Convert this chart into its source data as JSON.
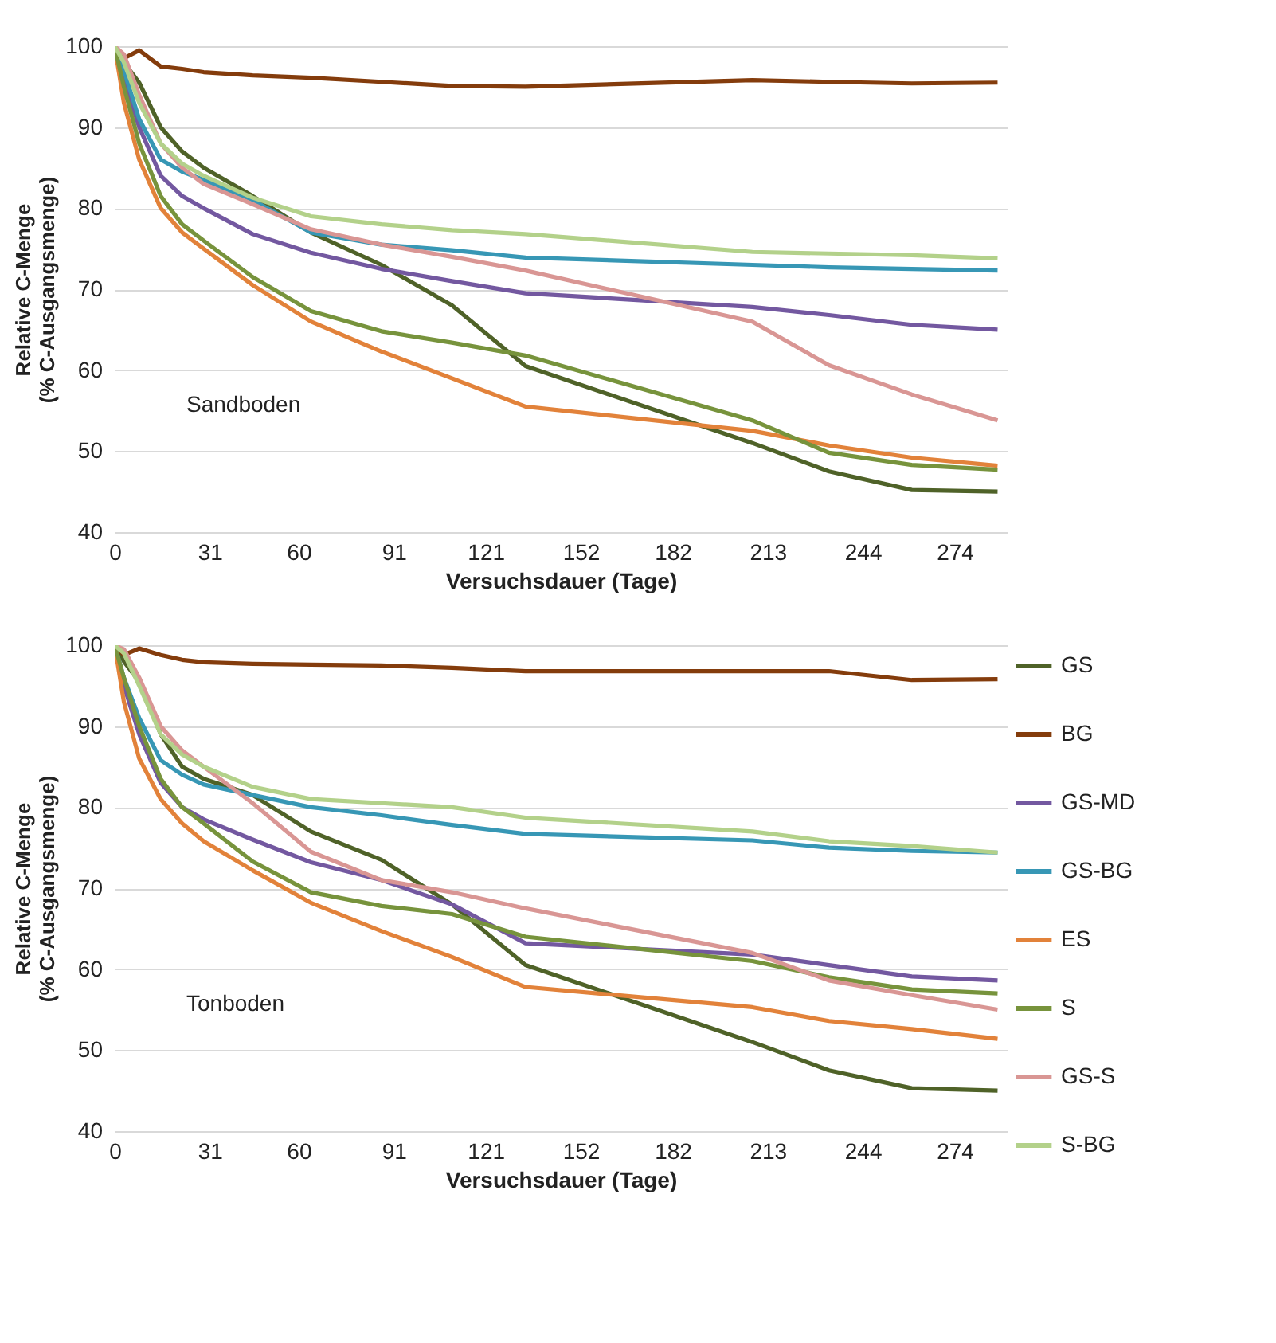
{
  "chart_data": [
    {
      "type": "line",
      "xlabel": "Versuchsdauer (Tage)",
      "ylabel": "Relative C-Menge\n(% C-Ausgangsmenge)",
      "annotations": [
        "Sandboden"
      ],
      "xlim": [
        0,
        291
      ],
      "xticks": [
        0,
        31,
        60,
        91,
        121,
        152,
        182,
        213,
        244,
        274
      ],
      "ylim": [
        40,
        100
      ],
      "yticks": [
        40,
        50,
        60,
        70,
        80,
        90,
        100
      ],
      "grid": "y",
      "legend": false,
      "x": [
        0,
        3,
        8,
        15,
        22,
        29,
        45,
        64,
        87,
        110,
        134,
        208,
        233,
        260,
        288
      ],
      "series": [
        {
          "color": "#4f6228",
          "values": [
            100,
            98,
            95.5,
            90,
            87,
            85,
            81.5,
            77,
            73,
            68,
            60.5,
            51,
            47.5,
            45.2,
            45
          ]
        },
        {
          "color": "#843c0c",
          "values": [
            100,
            98.5,
            99.5,
            97.5,
            97.2,
            96.8,
            96.4,
            96.1,
            95.6,
            95.1,
            95,
            95.8,
            95.6,
            95.4,
            95.5
          ]
        },
        {
          "color": "#7358a0",
          "values": [
            100,
            96,
            90,
            84,
            81.5,
            80,
            76.8,
            74.5,
            72.5,
            71,
            69.5,
            67.8,
            66.8,
            65.6,
            65
          ]
        },
        {
          "color": "#3797b5",
          "values": [
            100,
            97,
            91,
            86,
            84.5,
            83.5,
            81,
            77,
            75.5,
            74.8,
            73.9,
            73,
            72.7,
            72.5,
            72.3
          ]
        },
        {
          "color": "#e2823a",
          "values": [
            100,
            93,
            86,
            80,
            77,
            75,
            70.5,
            66,
            62.3,
            59,
            55.5,
            52.5,
            50.7,
            49.2,
            48.2
          ]
        },
        {
          "color": "#77933c",
          "values": [
            100,
            95,
            88,
            81.5,
            78,
            76,
            71.5,
            67.3,
            64.8,
            63.4,
            61.8,
            53.8,
            49.8,
            48.3,
            47.7
          ]
        },
        {
          "color": "#d99694",
          "values": [
            100,
            99,
            94,
            88,
            85,
            83,
            80.5,
            77.4,
            75.5,
            74,
            72.3,
            66,
            60.6,
            57,
            53.8
          ]
        },
        {
          "color": "#b3d18a",
          "values": [
            100,
            98,
            93,
            88,
            85.5,
            84,
            81.3,
            79,
            78,
            77.3,
            76.8,
            74.6,
            74.4,
            74.2,
            73.8
          ]
        }
      ]
    },
    {
      "type": "line",
      "xlabel": "Versuchsdauer (Tage)",
      "ylabel": "Relative C-Menge\n(% C-Ausgangsmenge)",
      "annotations": [
        "Tonboden"
      ],
      "xlim": [
        0,
        291
      ],
      "xticks": [
        0,
        31,
        60,
        91,
        121,
        152,
        182,
        213,
        244,
        274
      ],
      "ylim": [
        40,
        100
      ],
      "yticks": [
        40,
        50,
        60,
        70,
        80,
        90,
        100
      ],
      "grid": "y",
      "legend": "right",
      "x": [
        0,
        3,
        8,
        15,
        22,
        29,
        45,
        64,
        87,
        110,
        134,
        208,
        233,
        260,
        288
      ],
      "series": [
        {
          "name": "GS",
          "color": "#4f6228",
          "values": [
            100,
            98,
            95.5,
            89,
            85,
            83.5,
            81.5,
            77,
            73.5,
            68,
            60.5,
            51,
            47.5,
            45.3,
            45
          ]
        },
        {
          "name": "BG",
          "color": "#843c0c",
          "values": [
            100,
            98.8,
            99.6,
            98.8,
            98.2,
            97.9,
            97.7,
            97.6,
            97.5,
            97.2,
            96.8,
            96.8,
            96.8,
            95.7,
            95.8
          ]
        },
        {
          "name": "GS-MD",
          "color": "#7358a0",
          "values": [
            100,
            95,
            89,
            83,
            80,
            78.5,
            76,
            73.2,
            71,
            68,
            63.2,
            61.8,
            60.5,
            59.1,
            58.6
          ]
        },
        {
          "name": "GS-BG",
          "color": "#3797b5",
          "values": [
            100,
            96,
            91,
            85.8,
            84,
            82.8,
            81.5,
            80,
            79,
            77.8,
            76.7,
            75.9,
            75,
            74.6,
            74.4
          ]
        },
        {
          "name": "ES",
          "color": "#e2823a",
          "values": [
            100,
            93,
            86,
            81,
            78,
            75.8,
            72.2,
            68.2,
            64.7,
            61.5,
            57.8,
            55.3,
            53.6,
            52.6,
            51.4
          ]
        },
        {
          "name": "S",
          "color": "#77933c",
          "values": [
            100,
            96,
            90,
            83.5,
            80,
            78,
            73.3,
            69.5,
            67.8,
            66.8,
            64,
            61,
            59,
            57.5,
            57
          ]
        },
        {
          "name": "GS-S",
          "color": "#d99694",
          "values": [
            100,
            99.5,
            96,
            90,
            87,
            85,
            80.5,
            74.5,
            71,
            69.5,
            67.5,
            62,
            58.6,
            56.8,
            55
          ]
        },
        {
          "name": "S-BG",
          "color": "#b3d18a",
          "values": [
            100,
            99,
            95,
            89,
            86.5,
            85,
            82.5,
            81,
            80.5,
            80,
            78.7,
            77,
            75.8,
            75.2,
            74.4
          ]
        }
      ]
    }
  ]
}
